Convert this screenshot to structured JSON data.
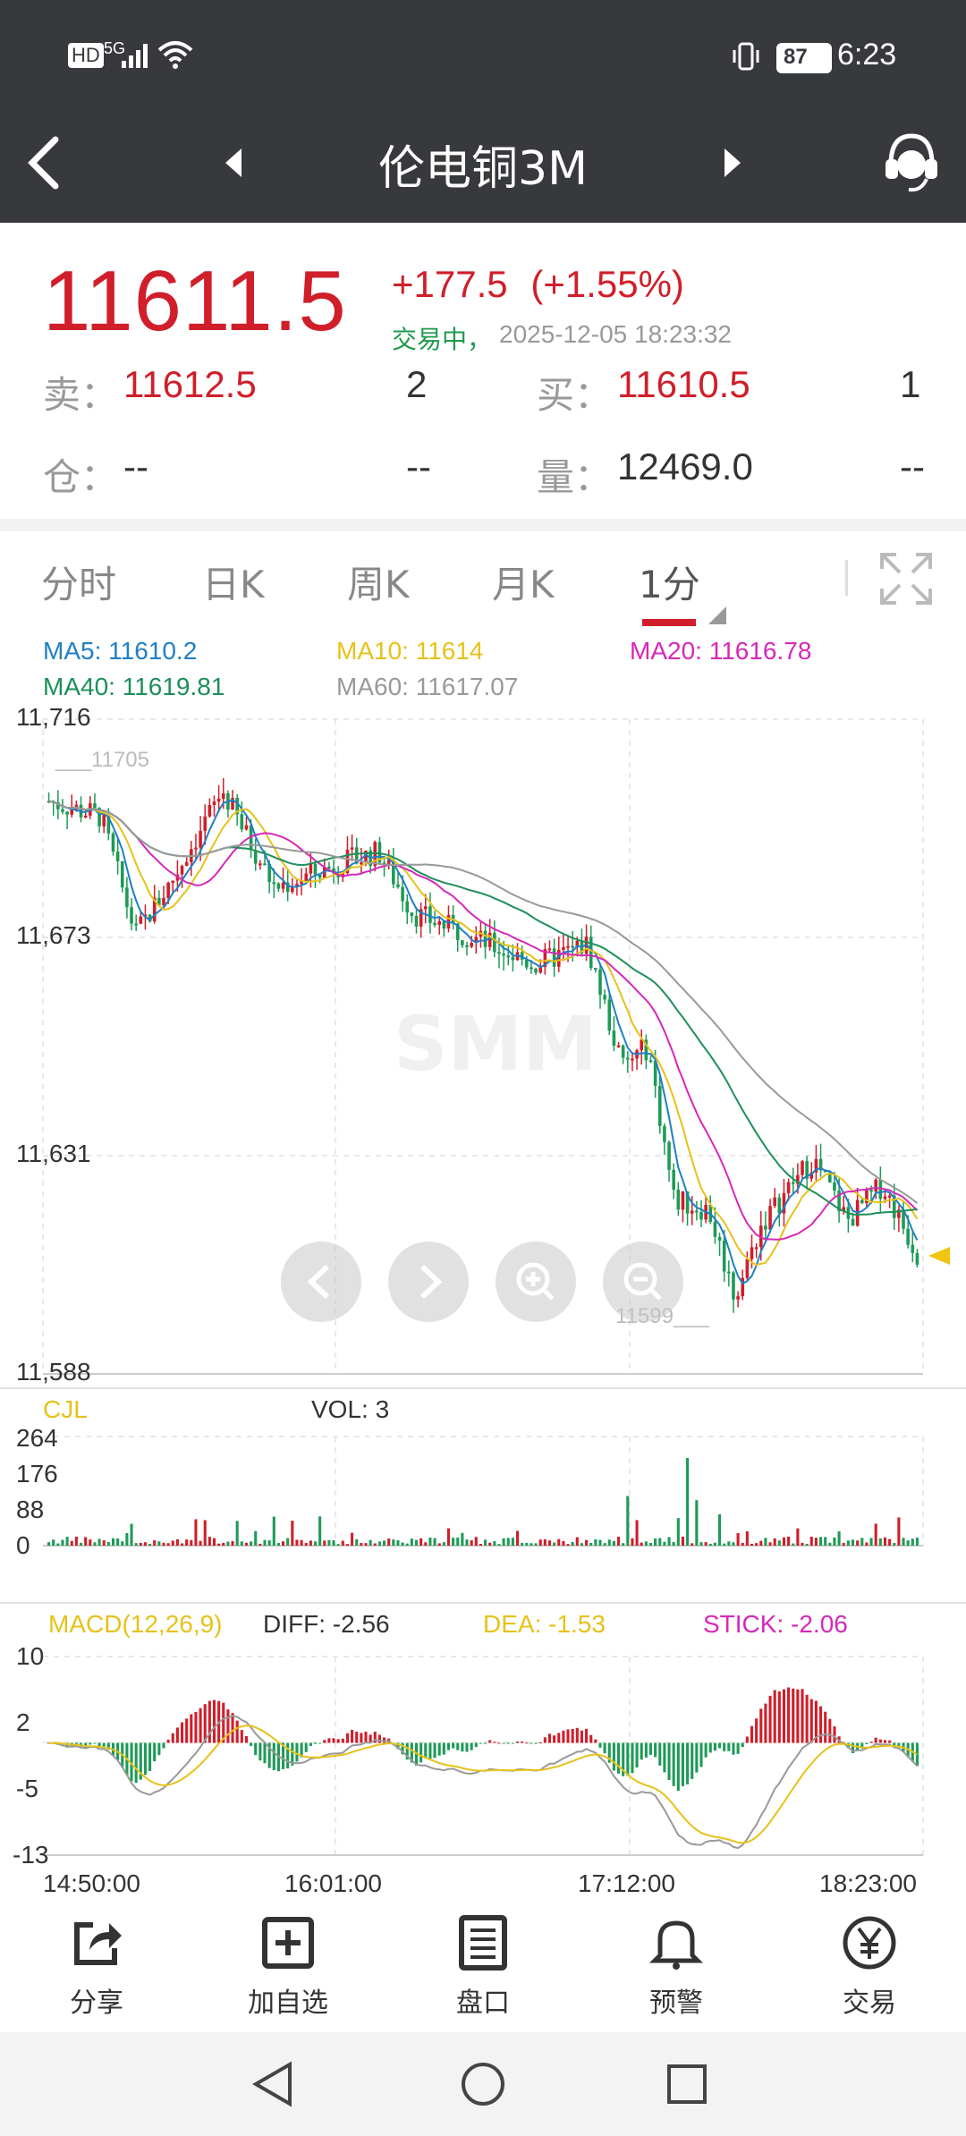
{
  "status_bar": {
    "time": "6:23",
    "battery": "87",
    "network": "5G",
    "hd": "HD"
  },
  "header": {
    "title": "伦电铜3M"
  },
  "quote": {
    "price": "11611.5",
    "change": "+177.5",
    "change_pct": "(+1.55%)",
    "status": "交易中，",
    "timestamp": "2025-12-05 18:23:32",
    "sell_label": "卖：",
    "sell_price": "11612.5",
    "sell_qty": "2",
    "buy_label": "买：",
    "buy_price": "11610.5",
    "buy_qty": "1",
    "position_label": "仓：",
    "position_value": "--",
    "position_change": "--",
    "volume_label": "量：",
    "volume_value": "12469.0",
    "volume_change": "--"
  },
  "tabs": [
    "分时",
    "日K",
    "周K",
    "月K",
    "1分"
  ],
  "ma": {
    "ma5": "MA5: 11610.2",
    "ma10": "MA10: 11614",
    "ma20": "MA20: 11616.78",
    "ma40": "MA40: 11619.81",
    "ma60": "MA60: 11617.07",
    "colors": {
      "ma5": "#1f7fc4",
      "ma10": "#e6c21a",
      "ma20": "#d629b8",
      "ma40": "#1e8f5a",
      "ma60": "#999999"
    }
  },
  "price_axis": [
    "11,716",
    "11,673",
    "11,631",
    "11,588"
  ],
  "high_label": "11705",
  "low_label": "11599",
  "volume": {
    "label": "CJL",
    "vol_text": "VOL: 3",
    "axis": [
      "264",
      "176",
      "88",
      "0"
    ]
  },
  "macd": {
    "label": "MACD(12,26,9)",
    "diff": "DIFF: -2.56",
    "dea": "DEA: -1.53",
    "stick": "STICK: -2.06",
    "axis": [
      "10",
      "2",
      "-5",
      "-13"
    ]
  },
  "time_axis": [
    "14:50:00",
    "16:01:00",
    "17:12:00",
    "18:23:00"
  ],
  "toolbar": [
    {
      "label": "分享",
      "icon": "share-icon"
    },
    {
      "label": "加自选",
      "icon": "add-icon"
    },
    {
      "label": "盘口",
      "icon": "orderbook-icon"
    },
    {
      "label": "预警",
      "icon": "bell-icon"
    },
    {
      "label": "交易",
      "icon": "yuan-icon"
    }
  ],
  "colors": {
    "up": "#d01e2a",
    "down": "#1e9a57",
    "header_bg": "#37393d"
  },
  "chart_data": {
    "type": "candlestick",
    "ylim": [
      11588,
      11716
    ],
    "high": 11705,
    "low": 11599,
    "last": 11611.5,
    "x_ticks": [
      "14:50:00",
      "16:01:00",
      "17:12:00",
      "18:23:00"
    ],
    "volume_ylim": [
      0,
      264
    ],
    "macd_ylim": [
      -13,
      10
    ]
  }
}
